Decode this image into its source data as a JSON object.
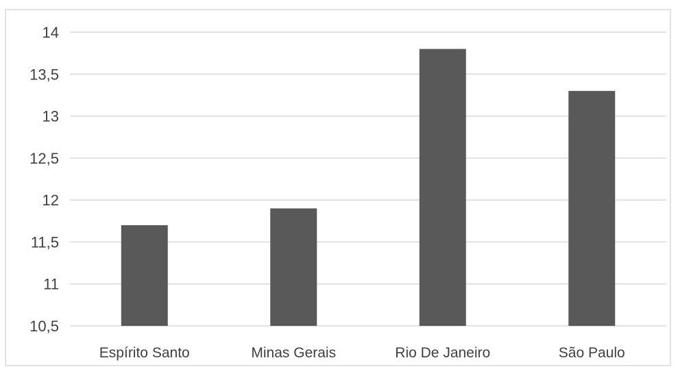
{
  "chart_data": {
    "type": "bar",
    "title": "",
    "xlabel": "",
    "ylabel": "",
    "categories": [
      "Espírito Santo",
      "Minas Gerais",
      "Rio De Janeiro",
      "São Paulo"
    ],
    "values": [
      11.7,
      11.9,
      13.8,
      13.3
    ],
    "ylim": [
      10.5,
      14
    ],
    "yticks": [
      10.5,
      11,
      11.5,
      12,
      12.5,
      13,
      13.5,
      14
    ],
    "ytick_labels": [
      "10,5",
      "11",
      "11,5",
      "12",
      "12,5",
      "13",
      "13,5",
      "14"
    ],
    "grid": true,
    "legend": "none",
    "bar_color": "#595959",
    "grid_color": "#d9d9d9",
    "text_color": "#404040"
  }
}
